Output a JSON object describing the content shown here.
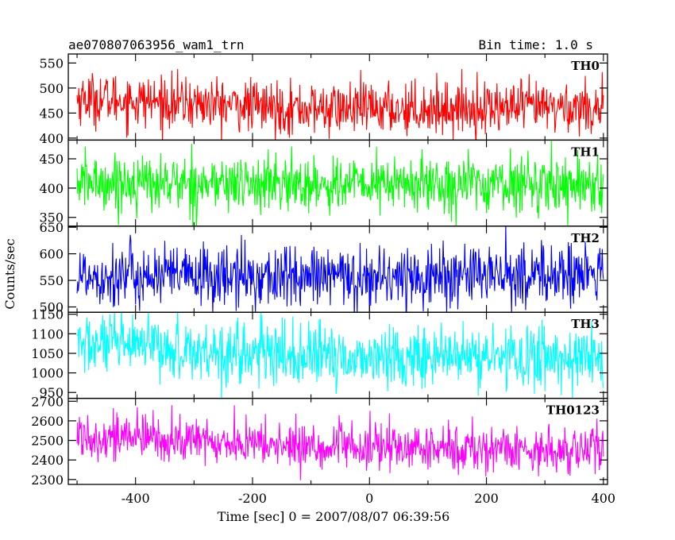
{
  "header": {
    "title": "ae070807063956_wam1_trn",
    "bin_time": "Bin time: 1.0 s"
  },
  "chart_data": {
    "type": "line",
    "xlabel": "Time [sec] 0 = 2007/08/07 06:39:56",
    "ylabel": "Counts/sec",
    "xlim": [
      -515,
      407
    ],
    "x_range": [
      -500,
      400
    ],
    "x_step": 1.0,
    "x_ticks": [
      -400,
      -200,
      0,
      200,
      400
    ],
    "grid": false,
    "panels": [
      {
        "name": "TH0",
        "color": "#ff0000",
        "ylim": [
          396,
          568
        ],
        "y_ticks": [
          400,
          450,
          500,
          550
        ],
        "level_start": 480,
        "level_mid": 458,
        "level_end": 462,
        "spread": 26
      },
      {
        "name": "TH1",
        "color": "#00ff00",
        "ylim": [
          335,
          482
        ],
        "y_ticks": [
          350,
          400,
          450
        ],
        "level_start": 410,
        "level_mid": 406,
        "level_end": 408,
        "spread": 24
      },
      {
        "name": "TH2",
        "color": "#0000ff",
        "ylim": [
          490,
          652
        ],
        "y_ticks": [
          500,
          550,
          600,
          650
        ],
        "level_start": 560,
        "level_mid": 555,
        "level_end": 562,
        "spread": 30
      },
      {
        "name": "TH3",
        "color": "#00ffff",
        "ylim": [
          935,
          1155
        ],
        "y_ticks": [
          950,
          1000,
          1050,
          1100,
          1150
        ],
        "level_start": 1075,
        "level_mid": 1040,
        "level_end": 1040,
        "spread": 40
      },
      {
        "name": "TH0123",
        "color": "#ff00ff",
        "ylim": [
          2275,
          2715
        ],
        "y_ticks": [
          2300,
          2400,
          2500,
          2600,
          2700
        ],
        "level_start": 2530,
        "level_mid": 2465,
        "level_end": 2450,
        "spread": 60
      }
    ]
  }
}
